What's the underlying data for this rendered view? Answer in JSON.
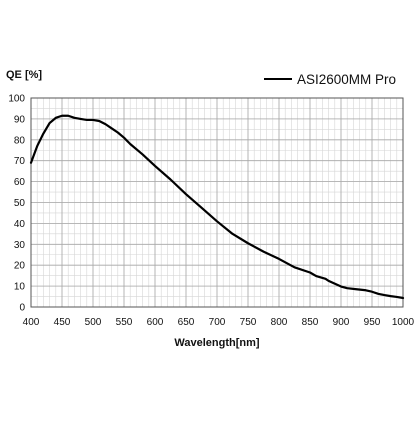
{
  "chart_data": {
    "type": "line",
    "title": "",
    "xlabel": "Wavelength[nm]",
    "ylabel": "QE [%]",
    "xlim": [
      400,
      1000
    ],
    "ylim": [
      0,
      100
    ],
    "x_ticks": [
      400,
      450,
      500,
      550,
      600,
      650,
      700,
      750,
      800,
      850,
      900,
      950,
      1000
    ],
    "y_ticks": [
      0,
      10,
      20,
      30,
      40,
      50,
      60,
      70,
      80,
      90,
      100
    ],
    "x_minor_step": 10,
    "y_minor_step": 5,
    "grid": true,
    "legend_position": "top-right",
    "series": [
      {
        "name": "ASI2600MM Pro",
        "color": "#000000",
        "x": [
          400,
          410,
          420,
          430,
          440,
          450,
          460,
          470,
          480,
          490,
          500,
          510,
          520,
          530,
          540,
          550,
          560,
          580,
          600,
          625,
          650,
          675,
          700,
          725,
          750,
          775,
          800,
          825,
          850,
          860,
          875,
          880,
          900,
          910,
          925,
          940,
          950,
          960,
          970,
          980,
          990,
          1000
        ],
        "y": [
          69,
          77,
          83,
          88,
          90.5,
          91.5,
          91.5,
          90.5,
          90,
          89.5,
          89.5,
          89,
          87.5,
          85.5,
          83.5,
          81,
          78,
          73,
          67.5,
          61,
          54,
          47.5,
          41,
          35,
          30.5,
          26.5,
          23,
          19,
          16.5,
          14.8,
          13.5,
          12.5,
          9.8,
          9,
          8.5,
          8,
          7.3,
          6.3,
          5.7,
          5.2,
          4.8,
          4.3
        ]
      }
    ]
  }
}
